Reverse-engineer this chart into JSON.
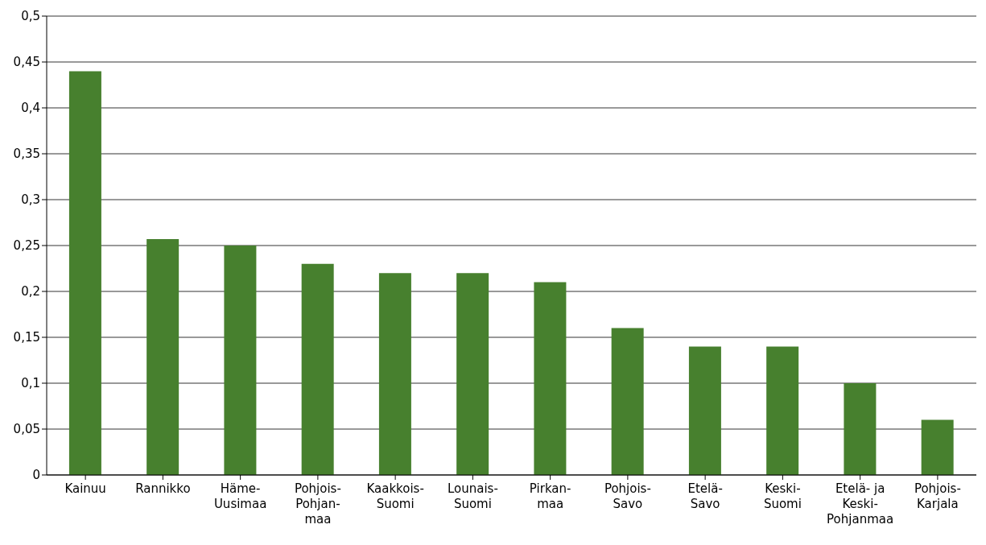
{
  "chart_data": {
    "type": "bar",
    "categories": [
      "Kainuu",
      "Rannikko",
      "Häme-\nUusimaa",
      "Pohjois-\nPohjan-\nmaa",
      "Kaakkois-\nSuomi",
      "Lounais-\nSuomi",
      "Pirkan-\nmaa",
      "Pohjois-\nSavo",
      "Etelä-\nSavo",
      "Keski-\nSuomi",
      "Etelä- ja\nKeski-\nPohjanmaa",
      "Pohjois-\nKarjala"
    ],
    "values": [
      0.44,
      0.257,
      0.25,
      0.23,
      0.22,
      0.22,
      0.21,
      0.16,
      0.14,
      0.14,
      0.1,
      0.06
    ],
    "color": "#47802e",
    "ylim": [
      0,
      0.5
    ],
    "yticks": [
      0,
      {
        "value": 0.05,
        "label": "0,05"
      },
      {
        "value": 0.1,
        "label": "0,1"
      },
      {
        "value": 0.15,
        "label": "0,15"
      },
      {
        "value": 0.2,
        "label": "0,2"
      },
      {
        "value": 0.25,
        "label": "0,25"
      },
      {
        "value": 0.3,
        "label": "0,3"
      },
      {
        "value": 0.35,
        "label": "0,35"
      },
      {
        "value": 0.4,
        "label": "0,4"
      },
      {
        "value": 0.45,
        "label": "0,45"
      },
      {
        "value": 0.5,
        "label": "0,5"
      }
    ],
    "grid": "y"
  }
}
